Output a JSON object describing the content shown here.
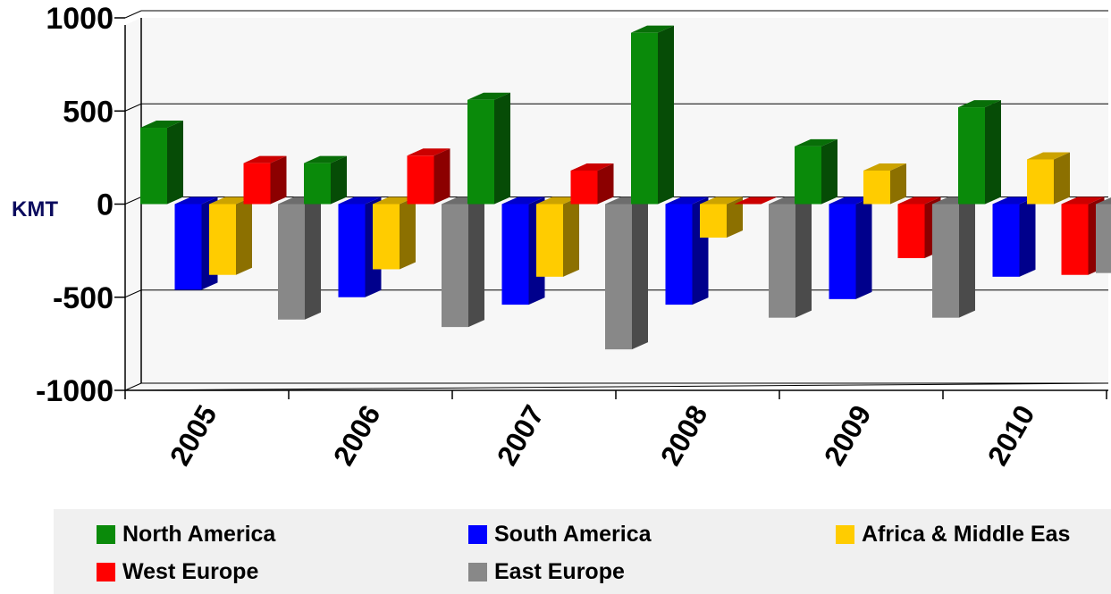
{
  "chart_data": {
    "type": "bar",
    "ylabel": "KMT",
    "ylim": [
      -1000,
      1000
    ],
    "yticks": [
      "1000",
      "500",
      "0",
      "-500",
      "-1000"
    ],
    "ytick_values": [
      1000,
      500,
      0,
      -500,
      -1000
    ],
    "categories": [
      "2005",
      "2006",
      "2007",
      "2008",
      "2009",
      "2010"
    ],
    "grid": true,
    "legend_position": "bottom",
    "series": [
      {
        "name": "North America",
        "color": "#0a8a0a",
        "values": [
          410,
          220,
          560,
          920,
          310,
          520
        ]
      },
      {
        "name": "South America",
        "color": "#0000ff",
        "values": [
          -460,
          -500,
          -540,
          -540,
          -510,
          -390
        ]
      },
      {
        "name": "Africa & Middle East",
        "color": "#ffcc00",
        "values": [
          -380,
          -350,
          -390,
          -180,
          180,
          240
        ]
      },
      {
        "name": "West Europe",
        "color": "#ff0000",
        "values": [
          220,
          260,
          180,
          0,
          -290,
          -380
        ]
      },
      {
        "name": "East Europe",
        "color": "#888888",
        "values": [
          -620,
          -660,
          -780,
          -610,
          -610,
          -370
        ]
      }
    ]
  },
  "legend": {
    "items": [
      {
        "label": "North America",
        "color": "#0a8a0a"
      },
      {
        "label": "South America",
        "color": "#0000ff"
      },
      {
        "label": "Africa & Middle Eas",
        "color": "#ffcc00"
      },
      {
        "label": "West Europe",
        "color": "#ff0000"
      },
      {
        "label": "East Europe",
        "color": "#888888"
      }
    ]
  }
}
